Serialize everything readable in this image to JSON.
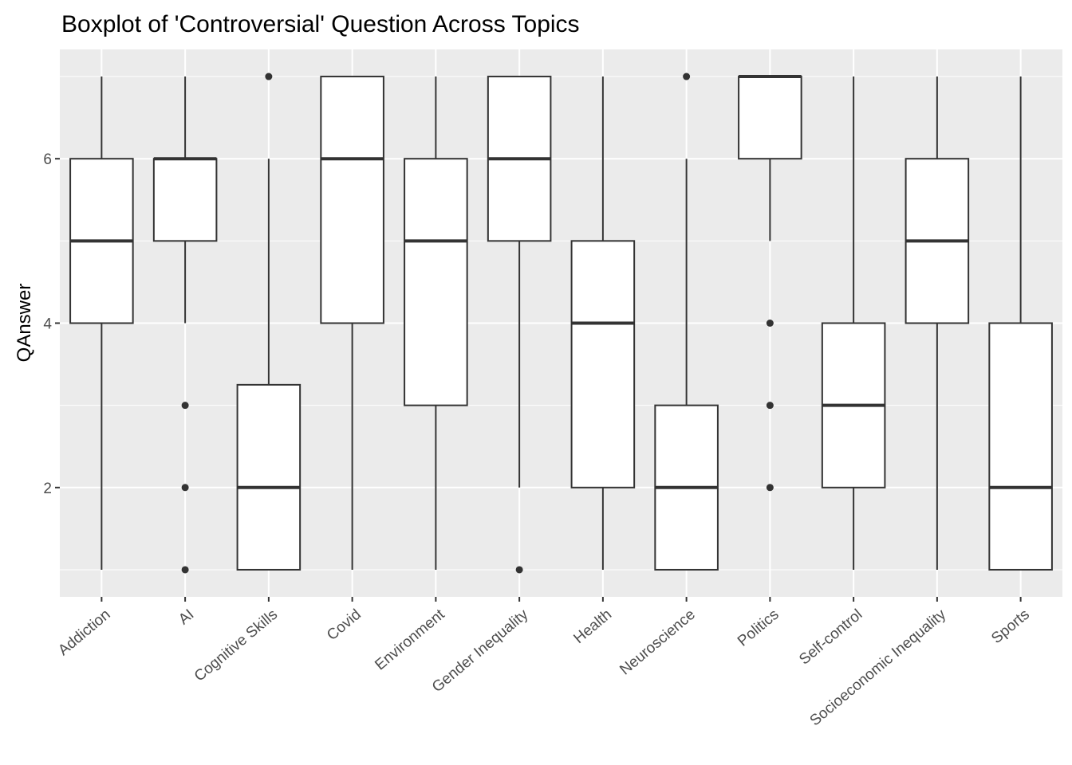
{
  "chart_data": {
    "type": "boxplot",
    "title": "Boxplot of 'Controversial' Question Across Topics",
    "xlabel": "",
    "ylabel": "QAnswer",
    "ylim": [
      0.67,
      7.33
    ],
    "y_ticks": [
      2,
      4,
      6
    ],
    "grid": true,
    "categories": [
      "Addiction",
      "AI",
      "Cognitive Skills",
      "Covid",
      "Environment",
      "Gender Inequality",
      "Health",
      "Neuroscience",
      "Politics",
      "Self-control",
      "Socioeconomic Inequality",
      "Sports"
    ],
    "boxes": [
      {
        "category": "Addiction",
        "lower_whisker": 1,
        "q1": 4,
        "median": 5,
        "q3": 6,
        "upper_whisker": 7,
        "outliers": []
      },
      {
        "category": "AI",
        "lower_whisker": 4,
        "q1": 5,
        "median": 6,
        "q3": 6,
        "upper_whisker": 7,
        "outliers": [
          1,
          2,
          3
        ]
      },
      {
        "category": "Cognitive Skills",
        "lower_whisker": 1,
        "q1": 1,
        "median": 2,
        "q3": 3.25,
        "upper_whisker": 6,
        "outliers": [
          7
        ]
      },
      {
        "category": "Covid",
        "lower_whisker": 1,
        "q1": 4,
        "median": 6,
        "q3": 7,
        "upper_whisker": 7,
        "outliers": []
      },
      {
        "category": "Environment",
        "lower_whisker": 1,
        "q1": 3,
        "median": 5,
        "q3": 6,
        "upper_whisker": 7,
        "outliers": []
      },
      {
        "category": "Gender Inequality",
        "lower_whisker": 2,
        "q1": 5,
        "median": 6,
        "q3": 7,
        "upper_whisker": 7,
        "outliers": [
          1
        ]
      },
      {
        "category": "Health",
        "lower_whisker": 1,
        "q1": 2,
        "median": 4,
        "q3": 5,
        "upper_whisker": 7,
        "outliers": []
      },
      {
        "category": "Neuroscience",
        "lower_whisker": 1,
        "q1": 1,
        "median": 2,
        "q3": 3,
        "upper_whisker": 6,
        "outliers": [
          7
        ]
      },
      {
        "category": "Politics",
        "lower_whisker": 5,
        "q1": 6,
        "median": 7,
        "q3": 7,
        "upper_whisker": 7,
        "outliers": [
          2,
          3,
          4
        ]
      },
      {
        "category": "Self-control",
        "lower_whisker": 1,
        "q1": 2,
        "median": 3,
        "q3": 4,
        "upper_whisker": 7,
        "outliers": []
      },
      {
        "category": "Socioeconomic Inequality",
        "lower_whisker": 1,
        "q1": 4,
        "median": 5,
        "q3": 6,
        "upper_whisker": 7,
        "outliers": []
      },
      {
        "category": "Sports",
        "lower_whisker": 1,
        "q1": 1,
        "median": 2,
        "q3": 4,
        "upper_whisker": 7,
        "outliers": []
      }
    ],
    "colors": {
      "panel_background": "#ebebeb",
      "grid_major": "#ffffff",
      "box_fill": "#ffffff",
      "box_stroke": "#333333",
      "tick_label": "#4d4d4d",
      "tick_mark": "#333333"
    }
  }
}
